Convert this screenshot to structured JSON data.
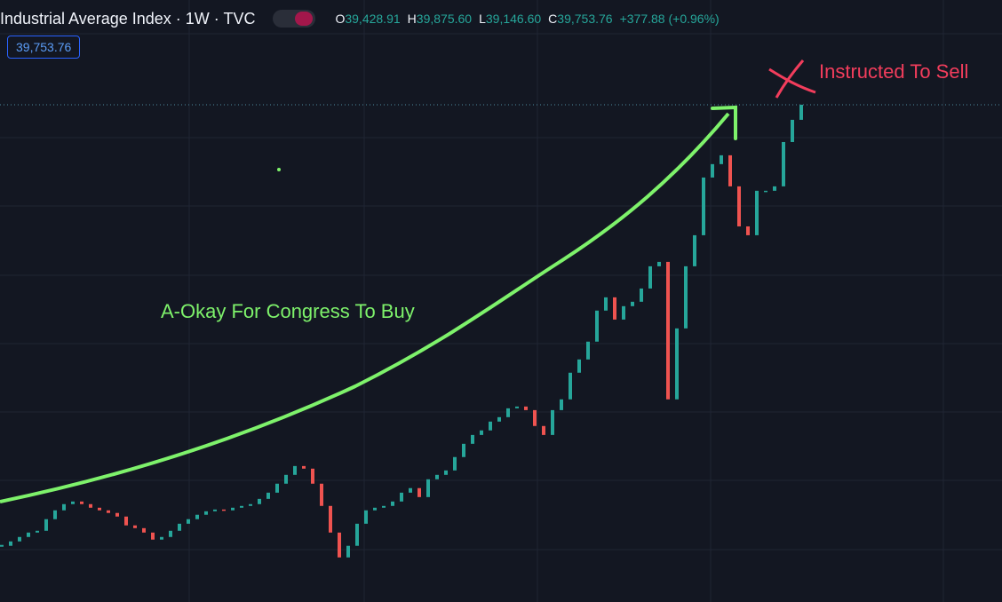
{
  "chart_data": {
    "type": "candlestick",
    "title": "Industrial Average Index · 1W · TVC",
    "ohlc_legend": [
      {
        "label": "O",
        "value": "39,428.91"
      },
      {
        "label": "H",
        "value": "39,875.60"
      },
      {
        "label": "L",
        "value": "39,146.60"
      },
      {
        "label": "C",
        "value": "39,753.76"
      }
    ],
    "change": "+377.88 (+0.96%)",
    "price_label": "39,753.76",
    "annotations": [
      "A-Okay For Congress To Buy",
      "Instructed To Sell"
    ],
    "ylim": [
      3730,
      47340
    ],
    "up_color": "#26a69a",
    "down_color": "#ef5350",
    "values": [
      7800,
      8120,
      8440,
      8760,
      8890,
      9730,
      10370,
      10820,
      11010,
      10820,
      10560,
      10370,
      10180,
      9920,
      9280,
      9080,
      8760,
      8250,
      8440,
      8890,
      9400,
      9730,
      10050,
      10300,
      10430,
      10370,
      10560,
      10690,
      10820,
      11200,
      11650,
      12300,
      12940,
      13580,
      13390,
      12300,
      10690,
      8760,
      6960,
      7800,
      9400,
      10370,
      10560,
      10690,
      11010,
      11650,
      11980,
      11330,
      12620,
      12940,
      13260,
      14230,
      15190,
      15830,
      16160,
      16800,
      17120,
      17760,
      17890,
      17630,
      16480,
      15830,
      17630,
      18410,
      20340,
      21300,
      22590,
      24840,
      25800,
      24190,
      25160,
      25480,
      26440,
      28050,
      28370,
      18410,
      23550,
      28050,
      30300,
      34480,
      35450,
      36090,
      33840,
      30940,
      30300,
      33520,
      33520,
      33840,
      37050,
      38660,
      39753.76
    ]
  }
}
